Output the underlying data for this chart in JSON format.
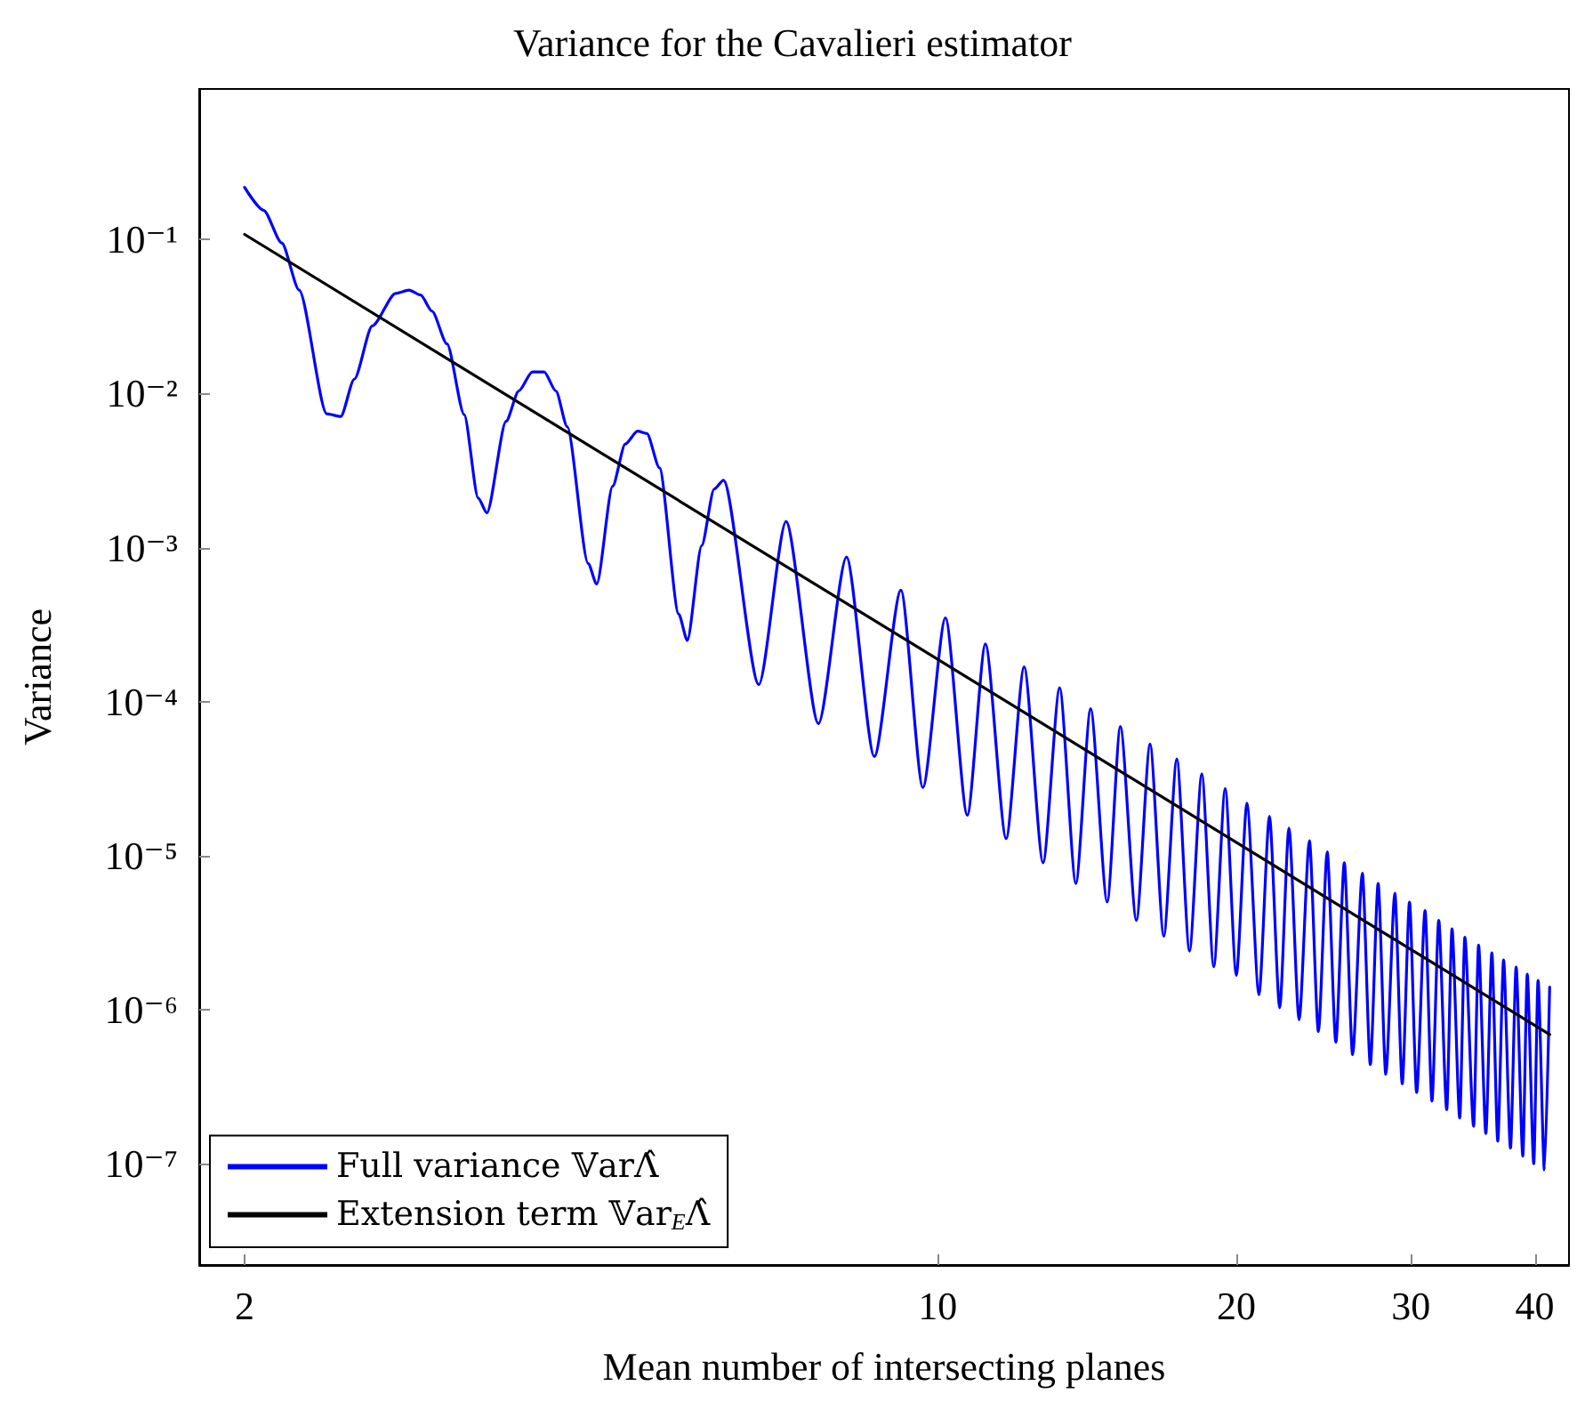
{
  "chart_data": {
    "type": "line",
    "title": "Variance for the Cavalieri estimator",
    "xlabel": "Mean number of intersecting planes",
    "ylabel": "Variance",
    "log": "xy",
    "grid": false,
    "legend": "bottom left",
    "marker": "none",
    "line_style": "solid",
    "xlim": [
      1.8,
      43.3
    ],
    "ylim": [
      2.2e-08,
      0.95
    ],
    "xticks": [
      2,
      10,
      20,
      30,
      40
    ],
    "yticks": [
      {
        "value": 1e-07,
        "label": "10⁻⁷"
      },
      {
        "value": 1e-06,
        "label": "10⁻⁶"
      },
      {
        "value": 1e-05,
        "label": "10⁻⁵"
      },
      {
        "value": 0.0001,
        "label": "10⁻⁴"
      },
      {
        "value": 0.001,
        "label": "10⁻³"
      },
      {
        "value": 0.01,
        "label": "10⁻²"
      },
      {
        "value": 0.1,
        "label": "10⁻¹"
      }
    ],
    "series": [
      {
        "name": "Full variance 𝕍arΛ̂",
        "color": "#0000ff",
        "x": [
          2,
          2.09,
          2.18,
          2.27,
          2.42,
          2.5,
          2.58,
          2.69,
          2.84,
          2.93,
          3.01,
          3.09,
          3.2,
          3.33,
          3.44,
          3.51,
          3.67,
          3.78,
          3.9,
          4.01,
          4.12,
          4.23,
          4.44,
          4.53,
          4.7,
          4.84,
          4.98,
          5.09,
          5.24,
          5.48,
          5.59,
          5.78,
          5.95,
          6.08,
          6.6,
          7.03,
          7.58,
          8.09,
          8.63,
          9.18,
          9.66,
          10.18,
          10.71,
          11.17,
          11.72,
          12.22,
          12.77,
          13.27,
          13.78,
          14.26,
          14.82,
          15.28,
          15.86,
          16.37,
          16.9,
          17.42,
          17.94,
          18.46,
          18.98,
          19.49,
          20.0,
          20.5,
          21.08,
          21.6,
          22.12,
          22.6,
          23.14,
          23.7,
          24.2,
          24.7,
          25.2,
          25.7,
          26.2,
          26.8,
          27.3,
          27.8,
          28.3,
          28.9,
          29.4,
          29.9,
          30.4,
          31.0,
          31.5,
          32.0,
          32.6,
          33.0,
          33.6,
          34.0,
          34.7,
          35.1,
          35.7,
          36.2,
          36.7,
          37.2,
          37.8,
          38.3,
          38.9,
          39.3,
          39.9,
          40.3,
          40.9,
          41.4
        ],
        "values": [
          0.218,
          0.155,
          0.095,
          0.047,
          0.0074,
          0.0071,
          0.0124,
          0.0275,
          0.0447,
          0.047,
          0.0436,
          0.0343,
          0.021,
          0.0073,
          0.0021,
          0.00168,
          0.0066,
          0.0104,
          0.0138,
          0.0138,
          0.0104,
          0.0061,
          0.00079,
          0.00058,
          0.0025,
          0.0047,
          0.0057,
          0.0055,
          0.0033,
          0.00037,
          0.00025,
          0.00103,
          0.0024,
          0.00274,
          0.000129,
          0.00148,
          7.2e-05,
          0.00087,
          4.4e-05,
          0.00053,
          2.77e-05,
          0.00035,
          1.83e-05,
          0.000237,
          1.29e-05,
          0.000168,
          9e-06,
          0.000123,
          6.6e-06,
          9e-05,
          5e-06,
          6.9e-05,
          3.8e-06,
          5.3e-05,
          3e-06,
          4.25e-05,
          2.4e-06,
          3.4e-05,
          1.9e-06,
          2.73e-05,
          1.67e-06,
          2.19e-05,
          1.25e-06,
          1.8e-05,
          1.03e-06,
          1.51e-05,
          8.6e-07,
          1.25e-05,
          7.2e-07,
          1.06e-05,
          6.15e-07,
          9e-06,
          5.1e-07,
          7.7e-06,
          4.4e-07,
          6.6e-06,
          3.8e-07,
          5.7e-06,
          3.3e-07,
          5e-06,
          2.9e-07,
          4.4e-06,
          2.55e-07,
          3.8e-06,
          2.24e-07,
          3.35e-06,
          1.98e-07,
          2.95e-06,
          1.75e-07,
          2.63e-06,
          1.57e-07,
          2.34e-06,
          1.4e-07,
          2.1e-06,
          1.26e-07,
          1.89e-06,
          1.12e-07,
          1.7e-06,
          1e-07,
          1.55e-06,
          9.1e-08,
          1.4e-06
        ]
      },
      {
        "name": "Extension term 𝕍ar$_{E}$Λ̂",
        "color": "#000000",
        "x": [
          2,
          41.4
        ],
        "values": [
          0.108,
          6.9e-07
        ]
      }
    ]
  }
}
